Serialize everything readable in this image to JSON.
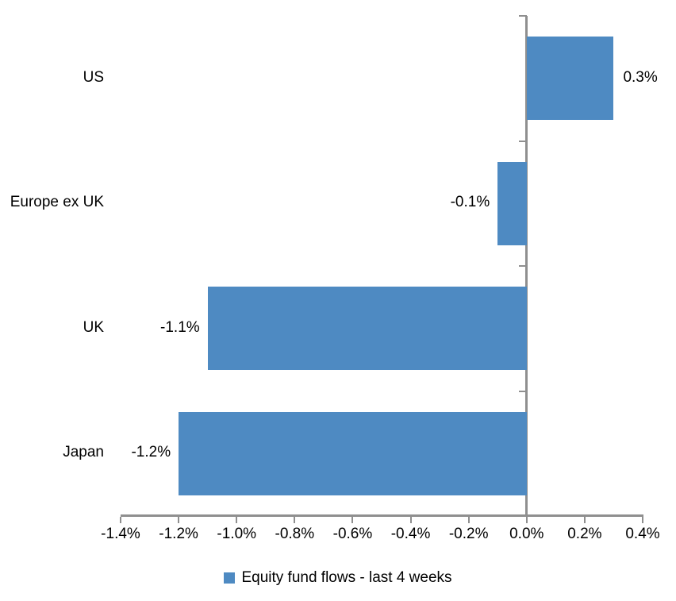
{
  "chart_data": {
    "type": "bar",
    "orientation": "horizontal",
    "title": "",
    "xlabel": "",
    "ylabel": "",
    "categories": [
      "US",
      "Europe ex UK",
      "UK",
      "Japan"
    ],
    "series": [
      {
        "name": "Equity fund flows - last 4 weeks",
        "values": [
          0.3,
          -0.1,
          -1.1,
          -1.2
        ],
        "data_labels": [
          "0.3%",
          "-0.1%",
          "-1.1%",
          "-1.2%"
        ]
      }
    ],
    "xlim": [
      -1.4,
      0.4
    ],
    "x_ticks": [
      -1.4,
      -1.2,
      -1.0,
      -0.8,
      -0.6,
      -0.4,
      -0.2,
      0.0,
      0.2,
      0.4
    ],
    "x_tick_labels": [
      "-1.4%",
      "-1.2%",
      "-1.0%",
      "-0.8%",
      "-0.6%",
      "-0.4%",
      "-0.2%",
      "0.0%",
      "0.2%",
      "0.4%"
    ],
    "grid": false,
    "legend_position": "bottom",
    "colors": {
      "bar": "#4E8AC2",
      "axis": "#8F8F8F",
      "text": "#000000",
      "background": "#FFFFFF"
    }
  },
  "legend": {
    "label": "Equity fund flows - last 4 weeks"
  }
}
